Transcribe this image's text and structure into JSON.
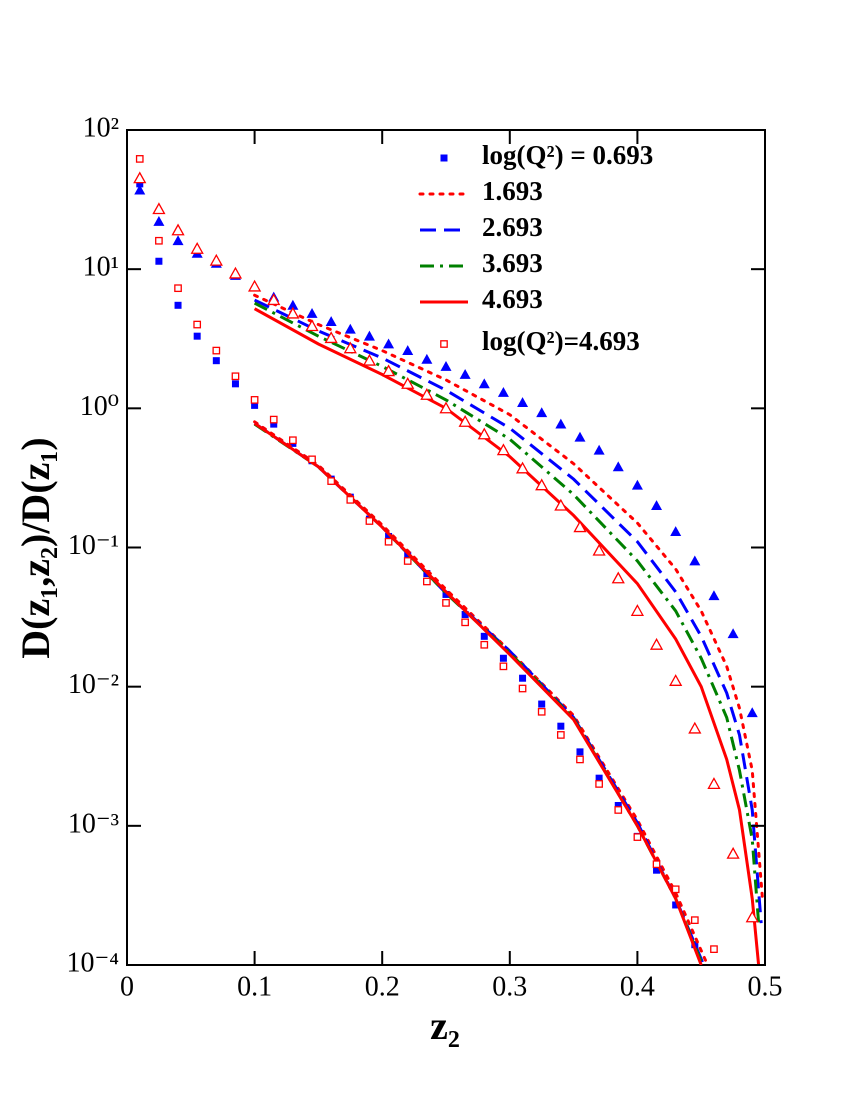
{
  "chart_data": {
    "type": "scatter-line",
    "xlabel": "z₂",
    "ylabel": "D(z₁,z₂)/D(z₁)",
    "xlim": [
      0,
      0.5
    ],
    "xticks": [
      0,
      0.1,
      0.2,
      0.3,
      0.4,
      0.5
    ],
    "ylim": [
      0.0001,
      100
    ],
    "yscale": "log",
    "yticks": [
      {
        "value": 0.0001,
        "label": "10⁻⁴"
      },
      {
        "value": 0.001,
        "label": "10⁻³"
      },
      {
        "value": 0.01,
        "label": "10⁻²"
      },
      {
        "value": 0.1,
        "label": "10⁻¹"
      },
      {
        "value": 1,
        "label": "10⁰"
      },
      {
        "value": 10,
        "label": "10¹"
      },
      {
        "value": 100,
        "label": "10²"
      }
    ],
    "legend": "upper right",
    "series": [
      {
        "name": "log(Q²) = 0.693",
        "color": "#0000ff",
        "marker": "square",
        "filled": true,
        "x": [
          0.01,
          0.025,
          0.04,
          0.055,
          0.07,
          0.085,
          0.1,
          0.115,
          0.13,
          0.145,
          0.16,
          0.175,
          0.19,
          0.205,
          0.22,
          0.235,
          0.25,
          0.265,
          0.28,
          0.295,
          0.31,
          0.325,
          0.34,
          0.355,
          0.37,
          0.385,
          0.4,
          0.415,
          0.43,
          0.445
        ],
        "values": [
          41,
          11.4,
          5.5,
          3.3,
          2.2,
          1.5,
          1.05,
          0.77,
          0.56,
          0.42,
          0.31,
          0.23,
          0.16,
          0.12,
          0.088,
          0.065,
          0.046,
          0.033,
          0.023,
          0.016,
          0.0115,
          0.0075,
          0.0052,
          0.0034,
          0.0022,
          0.0014,
          0.00084,
          0.00048,
          0.00027,
          0.00014
        ]
      },
      {
        "name": "1.693",
        "color": "#ff0000",
        "line": "dotted",
        "x": [
          0.1,
          0.15,
          0.2,
          0.25,
          0.3,
          0.35,
          0.4,
          0.43,
          0.455
        ],
        "values": [
          0.8,
          0.39,
          0.145,
          0.05,
          0.018,
          0.0062,
          0.0011,
          0.00033,
          0.0001
        ]
      },
      {
        "name": "2.693",
        "color": "#0000ff",
        "line": "dashed",
        "x": [
          0.1,
          0.15,
          0.2,
          0.25,
          0.3,
          0.35,
          0.4,
          0.43,
          0.452
        ],
        "values": [
          0.78,
          0.38,
          0.14,
          0.047,
          0.018,
          0.006,
          0.00105,
          0.0003,
          0.0001
        ]
      },
      {
        "name": "3.693",
        "color": "#008000",
        "line": "dashdot",
        "x": [
          0.1,
          0.15,
          0.2,
          0.25,
          0.3,
          0.35,
          0.4,
          0.43,
          0.451
        ],
        "values": [
          0.77,
          0.38,
          0.14,
          0.047,
          0.0175,
          0.0059,
          0.001,
          0.0003,
          0.0001
        ]
      },
      {
        "name": "4.693",
        "color": "#ff0000",
        "line": "solid",
        "x": [
          0.1,
          0.15,
          0.2,
          0.25,
          0.3,
          0.35,
          0.4,
          0.43,
          0.45
        ],
        "values": [
          0.78,
          0.38,
          0.14,
          0.048,
          0.017,
          0.0058,
          0.001,
          0.0003,
          0.0001
        ]
      },
      {
        "name": "log(Q²)=4.693",
        "color": "#ff0000",
        "marker": "square",
        "filled": false,
        "x": [
          0.01,
          0.025,
          0.04,
          0.055,
          0.07,
          0.085,
          0.1,
          0.115,
          0.13,
          0.145,
          0.16,
          0.175,
          0.19,
          0.205,
          0.22,
          0.235,
          0.25,
          0.265,
          0.28,
          0.295,
          0.31,
          0.325,
          0.34,
          0.355,
          0.37,
          0.385,
          0.4,
          0.415,
          0.43,
          0.445,
          0.46
        ],
        "values": [
          62,
          16,
          7.3,
          4.0,
          2.6,
          1.7,
          1.15,
          0.83,
          0.59,
          0.43,
          0.3,
          0.22,
          0.155,
          0.11,
          0.08,
          0.057,
          0.04,
          0.029,
          0.02,
          0.014,
          0.0097,
          0.0066,
          0.0045,
          0.003,
          0.002,
          0.0013,
          0.00083,
          0.00053,
          0.00035,
          0.00021,
          0.00013
        ]
      },
      {
        "color": "#0000ff",
        "marker": "triangle",
        "filled": true,
        "x": [
          0.01,
          0.025,
          0.04,
          0.055,
          0.07,
          0.085,
          0.1,
          0.115,
          0.13,
          0.145,
          0.16,
          0.175,
          0.19,
          0.205,
          0.22,
          0.235,
          0.25,
          0.265,
          0.28,
          0.295,
          0.31,
          0.325,
          0.34,
          0.355,
          0.37,
          0.385,
          0.4,
          0.415,
          0.43,
          0.445,
          0.46,
          0.475,
          0.49
        ],
        "values": [
          37,
          22,
          16,
          13,
          11,
          9,
          7.5,
          6.3,
          5.5,
          4.8,
          4.2,
          3.7,
          3.3,
          2.9,
          2.6,
          2.25,
          2.0,
          1.75,
          1.5,
          1.3,
          1.1,
          0.93,
          0.77,
          0.62,
          0.5,
          0.38,
          0.28,
          0.2,
          0.13,
          0.08,
          0.045,
          0.024,
          0.0065
        ]
      },
      {
        "color": "#ff0000",
        "line": "dotted",
        "x": [
          0.1,
          0.15,
          0.2,
          0.25,
          0.3,
          0.35,
          0.4,
          0.43,
          0.45,
          0.47,
          0.48,
          0.49,
          0.498
        ],
        "values": [
          6.5,
          4.0,
          2.6,
          1.6,
          0.9,
          0.4,
          0.15,
          0.07,
          0.035,
          0.014,
          0.007,
          0.0025,
          0.0003
        ]
      },
      {
        "color": "#0000ff",
        "line": "dashed",
        "x": [
          0.1,
          0.15,
          0.2,
          0.25,
          0.3,
          0.35,
          0.4,
          0.43,
          0.45,
          0.47,
          0.48,
          0.49,
          0.497
        ],
        "values": [
          6.0,
          3.6,
          2.3,
          1.35,
          0.72,
          0.31,
          0.11,
          0.048,
          0.023,
          0.009,
          0.0045,
          0.0013,
          0.0002
        ]
      },
      {
        "color": "#008000",
        "line": "dashdot",
        "x": [
          0.1,
          0.15,
          0.2,
          0.25,
          0.3,
          0.35,
          0.4,
          0.43,
          0.45,
          0.47,
          0.48,
          0.49,
          0.495
        ],
        "values": [
          5.7,
          3.3,
          2.0,
          1.15,
          0.6,
          0.24,
          0.08,
          0.035,
          0.016,
          0.006,
          0.0025,
          0.0008,
          0.0002
        ]
      },
      {
        "color": "#ff0000",
        "line": "solid",
        "x": [
          0.1,
          0.15,
          0.2,
          0.25,
          0.3,
          0.35,
          0.4,
          0.43,
          0.45,
          0.47,
          0.48,
          0.49,
          0.495
        ],
        "values": [
          5.2,
          2.9,
          1.75,
          1.0,
          0.45,
          0.17,
          0.055,
          0.022,
          0.01,
          0.003,
          0.0013,
          0.0003,
          0.0001
        ]
      },
      {
        "color": "#ff0000",
        "marker": "triangle",
        "filled": false,
        "x": [
          0.01,
          0.025,
          0.04,
          0.055,
          0.07,
          0.085,
          0.1,
          0.115,
          0.13,
          0.145,
          0.16,
          0.175,
          0.19,
          0.205,
          0.22,
          0.235,
          0.25,
          0.265,
          0.28,
          0.295,
          0.31,
          0.325,
          0.34,
          0.355,
          0.37,
          0.385,
          0.4,
          0.415,
          0.43,
          0.445,
          0.46,
          0.475,
          0.49
        ],
        "values": [
          45,
          27,
          19,
          14,
          11.5,
          9.3,
          7.5,
          6.0,
          4.8,
          3.9,
          3.2,
          2.7,
          2.2,
          1.85,
          1.5,
          1.25,
          1.0,
          0.8,
          0.65,
          0.5,
          0.37,
          0.28,
          0.2,
          0.14,
          0.095,
          0.06,
          0.035,
          0.02,
          0.011,
          0.005,
          0.002,
          0.00063,
          0.00022
        ]
      }
    ]
  }
}
